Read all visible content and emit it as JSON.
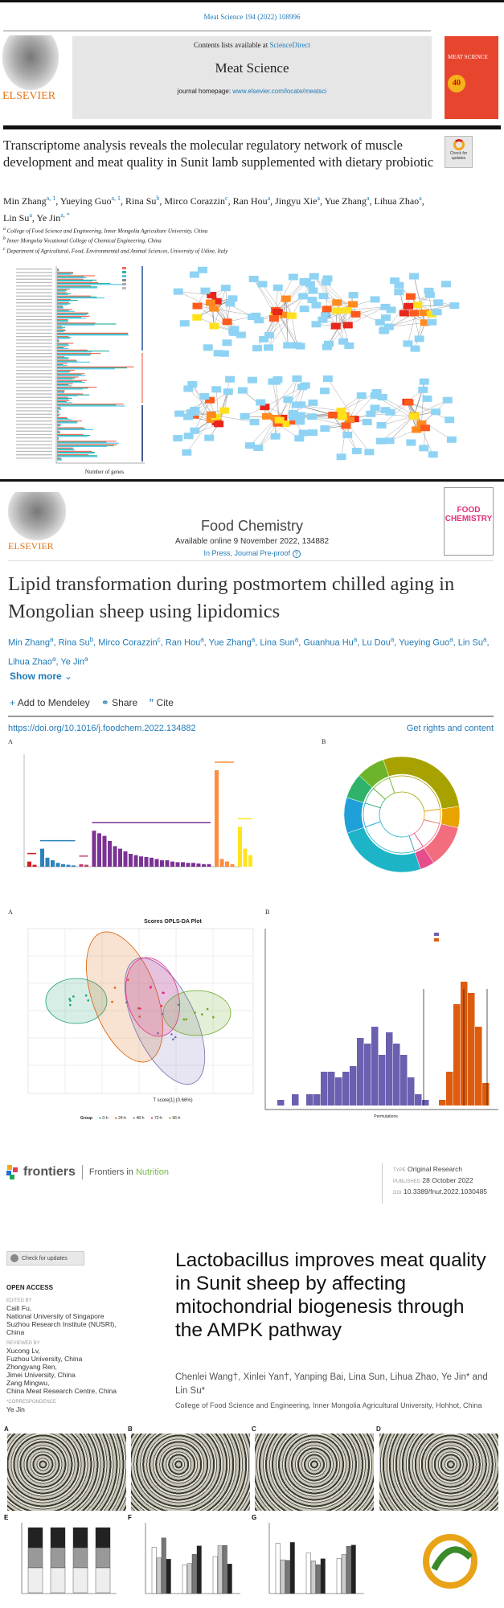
{
  "article1": {
    "citation": "Meat Science 194 (2022) 108996",
    "publisher": "ELSEVIER",
    "contents_prefix": "Contents lists available at ",
    "contents_link": "ScienceDirect",
    "journal": "Meat Science",
    "homepage_prefix": "journal homepage: ",
    "homepage_link": "www.elsevier.com/locate/meatsci",
    "cover_text": "MEAT SCIENCE",
    "cover_badge": "40",
    "check_updates": "Check for updates",
    "title": "Transcriptome analysis reveals the molecular regulatory network of muscle development and meat quality in Sunit lamb supplemented with dietary probiotic",
    "authors": [
      {
        "name": "Min Zhang",
        "sup": "a, 1"
      },
      {
        "name": "Yueying Guo",
        "sup": "a, 1"
      },
      {
        "name": "Rina Su",
        "sup": "b"
      },
      {
        "name": "Mirco Corazzin",
        "sup": "c"
      },
      {
        "name": "Ran Hou",
        "sup": "a"
      },
      {
        "name": "Jingyu Xie",
        "sup": "a"
      },
      {
        "name": "Yue Zhang",
        "sup": "a"
      },
      {
        "name": "Lihua Zhao",
        "sup": "a"
      },
      {
        "name": "Lin Su",
        "sup": "a"
      },
      {
        "name": "Ye Jin",
        "sup": "a, *"
      }
    ],
    "affiliations": [
      {
        "sup": "a",
        "text": "College of Food Science and Engineering, Inner Mongolia Agriculture University, China"
      },
      {
        "sup": "b",
        "text": "Inner Mongolia Vocational College of Chemical Engineering, China"
      },
      {
        "sup": "c",
        "text": "Department of Agricultural, Food, Environmental and Animal Sciences, University of Udine, Italy"
      }
    ],
    "figure_xlabel": "Number of genes",
    "colors": {
      "red": "#f26b5b",
      "teal": "#2bb5a0",
      "cyan": "#59c7ea",
      "node_blue": "#8fd3f4",
      "node_red": "#e8261c",
      "node_orange": "#ff8a1e",
      "node_yellow": "#ffe01a"
    }
  },
  "article2": {
    "publisher": "ELSEVIER",
    "journal": "Food Chemistry",
    "available": "Available online 9 November 2022, 134882",
    "status": "In Press, Journal Pre-proof",
    "cover_text": "FOOD CHEMISTRY",
    "title": "Lipid transformation during postmortem chilled aging in Mongolian sheep using lipidomics",
    "authors": [
      {
        "name": "Min Zhang",
        "sup": "a"
      },
      {
        "name": "Rina Su",
        "sup": "b"
      },
      {
        "name": "Mirco Corazzin",
        "sup": "c"
      },
      {
        "name": "Ran Hou",
        "sup": "a"
      },
      {
        "name": "Yue Zhang",
        "sup": "a"
      },
      {
        "name": "Lina Sun",
        "sup": "a"
      },
      {
        "name": "Guanhua Hu",
        "sup": "a"
      },
      {
        "name": "Lu Dou",
        "sup": "a"
      },
      {
        "name": "Yueying Guo",
        "sup": "a"
      },
      {
        "name": "Lin Su",
        "sup": "a"
      },
      {
        "name": "Lihua Zhao",
        "sup": "a"
      },
      {
        "name": "Ye Jin",
        "sup": "a"
      }
    ],
    "show_more": "Show more",
    "actions": {
      "mendeley": "Add to Mendeley",
      "share": "Share",
      "cite": "Cite"
    },
    "doi": "https://doi.org/10.1016/j.foodchem.2022.134882",
    "rights": "Get rights and content",
    "panels": [
      "A",
      "B",
      "A",
      "B"
    ],
    "scores_title": "Scores OPLS-DA Plot",
    "scores_xlabel": "T score[1] (0.66%)",
    "hist_xlabel": "Permutations",
    "group_label": "Group",
    "groups": [
      {
        "name": "0-h",
        "color": "#1b9e77"
      },
      {
        "name": "24-h",
        "color": "#d95f02"
      },
      {
        "name": "48-h",
        "color": "#7570b3"
      },
      {
        "name": "72-h",
        "color": "#e7298a"
      },
      {
        "name": "96-h",
        "color": "#66a61e"
      }
    ]
  },
  "article3": {
    "brand": "frontiers",
    "journal_prefix": "Frontiers in ",
    "journal_suffix": "Nutrition",
    "type_k": "TYPE",
    "type_v": "Original Research",
    "published_k": "PUBLISHED",
    "published_v": "28 October 2022",
    "doi_k": "DOI",
    "doi_v": "10.3389/fnut.2022.1030485",
    "check_updates": "Check for updates",
    "open_access": "OPEN ACCESS",
    "edited_by_k": "EDITED BY",
    "edited_by": [
      "Caili Fu,",
      "National University of Singapore",
      "Suzhou Research Institute (NUSRI),",
      "China"
    ],
    "reviewed_by_k": "REVIEWED BY",
    "reviewed_by": [
      "Xucong Lv,",
      "Fuzhou University, China",
      "Zhongyang Ren,",
      "Jimei University, China",
      "Zang Mingwu,",
      "China Meat Research Centre, China"
    ],
    "correspondence_k": "*CORRESPONDENCE",
    "correspondence": "Ye Jin",
    "title": "Lactobacillus improves meat quality in Sunit sheep by affecting mitochondrial biogenesis through the AMPK pathway",
    "authors": "Chenlei Wang†, Xinlei Yan†, Yanping Bai, Lina Sun, Lihua Zhao, Ye Jin* and Lin Su*",
    "affiliation": "College of Food Science and Engineering, Inner Mongolia Agricultural University, Hohhot, China",
    "panels": [
      "A",
      "B",
      "C",
      "D",
      "E",
      "F",
      "G"
    ]
  }
}
